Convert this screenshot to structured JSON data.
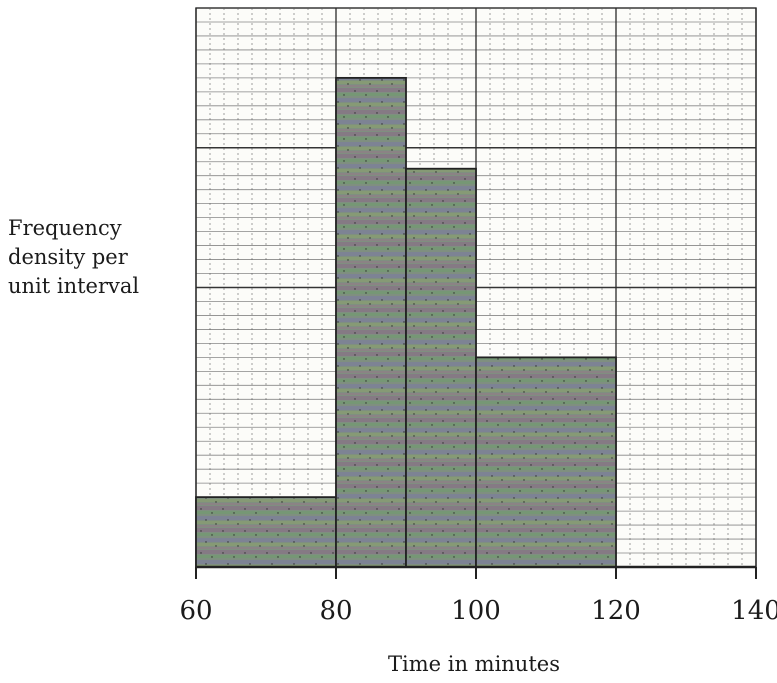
{
  "chart_data": {
    "type": "bar",
    "title": "",
    "xlabel": "Time in minutes",
    "ylabel": [
      "Frequency",
      "density per",
      "unit interval"
    ],
    "xlim": [
      60,
      140
    ],
    "ylim": [
      0,
      8
    ],
    "x_ticks": [
      60,
      80,
      100,
      120,
      140
    ],
    "grid": true,
    "bins": [
      {
        "from": 60,
        "to": 80,
        "value": 1
      },
      {
        "from": 80,
        "to": 90,
        "value": 7
      },
      {
        "from": 90,
        "to": 100,
        "value": 5.7
      },
      {
        "from": 100,
        "to": 120,
        "value": 3
      }
    ],
    "colors": {
      "axis": "#222222",
      "grid_major": "#2a2a2a",
      "grid_minor": "#5a5a5a",
      "bar_fill": "#7d8d7e",
      "bar_edge": "#222222",
      "text": "#1b1b1b"
    }
  }
}
